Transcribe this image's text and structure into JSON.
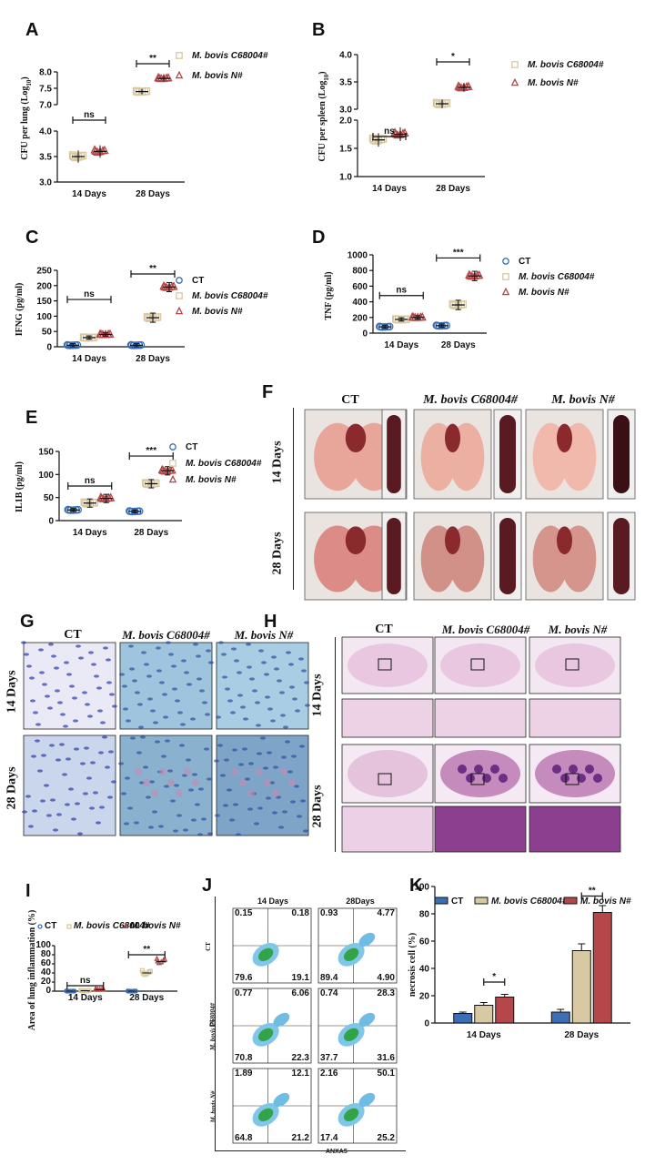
{
  "colors": {
    "ct": "#3a6fb8",
    "c68004": "#d9c9a3",
    "n": "#b5474a",
    "axis": "#111111"
  },
  "panels": {
    "A": {
      "label": "A",
      "legend": [
        "M. bovis C68004#",
        "M. bovis N#"
      ],
      "ylabel": "CFU per lung (Log",
      "ylabel_sub": "10",
      ")": ")",
      "yticks_top": [
        "7.0",
        "7.5",
        "8.0"
      ],
      "yticks_bottom": [
        "3.0",
        "3.5",
        "4.0"
      ],
      "xticks": [
        "14 Days",
        "28 Days"
      ],
      "sig": [
        "ns",
        "**"
      ]
    },
    "B": {
      "label": "B",
      "legend": [
        "M. bovis C68004#",
        "M. bovis N#"
      ],
      "ylabel": "CFU per spleen (Log",
      "ylabel_sub": "10",
      "yticks_top": [
        "3.0",
        "3.5",
        "4.0"
      ],
      "yticks_bottom": [
        "1.0",
        "1.5",
        "2.0"
      ],
      "xticks": [
        "14 Days",
        "28 Days"
      ],
      "sig": [
        "ns",
        "*"
      ]
    },
    "C": {
      "label": "C",
      "legend": [
        "CT",
        "M. bovis C68004#",
        "M. bovis N#"
      ],
      "ylabel": "IFNG (pg/ml)",
      "yticks": [
        "0",
        "50",
        "100",
        "150",
        "200",
        "250"
      ],
      "xticks": [
        "14 Days",
        "28 Days"
      ],
      "sig": [
        "ns",
        "**"
      ]
    },
    "D": {
      "label": "D",
      "legend": [
        "CT",
        "M. bovis C68004#",
        "M. bovis N#"
      ],
      "ylabel": "TNF (pg/ml)",
      "yticks": [
        "0",
        "200",
        "400",
        "600",
        "800",
        "1000"
      ],
      "xticks": [
        "14 Days",
        "28 Days"
      ],
      "sig": [
        "ns",
        "***"
      ]
    },
    "E": {
      "label": "E",
      "legend": [
        "CT",
        "M. bovis C68004#",
        "M. bovis N#"
      ],
      "ylabel": "IL1B (pg/ml)",
      "yticks": [
        "0",
        "50",
        "100",
        "150"
      ],
      "xticks": [
        "14 Days",
        "28 Days"
      ],
      "sig": [
        "ns",
        "***"
      ]
    },
    "F": {
      "label": "F",
      "cols": [
        "CT",
        "M. bovis C68004#",
        "M. bovis N#"
      ],
      "rows": [
        "14 Days",
        "28 Days"
      ]
    },
    "G": {
      "label": "G",
      "cols": [
        "CT",
        "M. bovis C68004#",
        "M. bovis N#"
      ],
      "rows": [
        "14 Days",
        "28 Days"
      ]
    },
    "H": {
      "label": "H",
      "cols": [
        "CT",
        "M. bovis C68004#",
        "M. bovis N#"
      ],
      "rows": [
        "14 Days",
        "28 Days"
      ]
    },
    "I": {
      "label": "I",
      "legend": [
        "CT",
        "M. bovis C68004#",
        "M. bovis N#"
      ],
      "ylabel": "Area of lung inflammation (%)",
      "yticks": [
        "0",
        "20",
        "40",
        "60",
        "80",
        "100"
      ],
      "xticks": [
        "14 Days",
        "28 Days"
      ],
      "sig": [
        "ns",
        "**"
      ]
    },
    "J": {
      "label": "J",
      "cols": [
        "14 Days",
        "28Days"
      ],
      "rows": [
        "CT",
        "M. bovis C68004#",
        "M. bovis N#"
      ],
      "ylabel": "PI",
      "xlabel": "ANXA5",
      "quadrants": [
        [
          "0.15",
          "0.18",
          "79.6",
          "19.1",
          "0.93",
          "4.77",
          "89.4",
          "4.90"
        ],
        [
          "0.77",
          "6.06",
          "70.8",
          "22.3",
          "0.74",
          "28.3",
          "37.7",
          "31.6"
        ],
        [
          "1.89",
          "12.1",
          "64.8",
          "21.2",
          "2.16",
          "50.1",
          "17.4",
          "25.2"
        ]
      ]
    },
    "K": {
      "label": "K",
      "legend": [
        "CT",
        "M. bovis C68004#",
        "M. bovis N#"
      ],
      "ylabel": "necrosis cell (%)",
      "yticks": [
        "0",
        "20",
        "40",
        "60",
        "80",
        "100"
      ],
      "xticks": [
        "14 Days",
        "28 Days"
      ],
      "sig": [
        "*",
        "**"
      ]
    }
  },
  "chart_data": [
    {
      "type": "scatter",
      "panel": "A",
      "categories": [
        "14 Days",
        "28 Days"
      ],
      "ylabel": "CFU per lung (Log10)",
      "broken_axis": true,
      "ylim_bottom": [
        3.0,
        4.0
      ],
      "ylim_top": [
        7.0,
        8.0
      ],
      "series": [
        {
          "name": "M. bovis C68004#",
          "mean": [
            3.5,
            7.4
          ]
        },
        {
          "name": "M. bovis N#",
          "mean": [
            3.6,
            7.8
          ]
        }
      ]
    },
    {
      "type": "scatter",
      "panel": "B",
      "categories": [
        "14 Days",
        "28 Days"
      ],
      "ylabel": "CFU per spleen (Log10)",
      "broken_axis": true,
      "ylim_bottom": [
        1.0,
        2.0
      ],
      "ylim_top": [
        3.0,
        4.0
      ],
      "series": [
        {
          "name": "M. bovis C68004#",
          "mean": [
            1.65,
            3.1
          ]
        },
        {
          "name": "M. bovis N#",
          "mean": [
            1.75,
            3.4
          ]
        }
      ]
    },
    {
      "type": "scatter",
      "panel": "C",
      "categories": [
        "14 Days",
        "28 Days"
      ],
      "ylabel": "IFNG (pg/ml)",
      "ylim": [
        0,
        250
      ],
      "series": [
        {
          "name": "CT",
          "mean": [
            5,
            5
          ]
        },
        {
          "name": "M. bovis C68004#",
          "mean": [
            30,
            95
          ]
        },
        {
          "name": "M. bovis N#",
          "mean": [
            40,
            195
          ]
        }
      ]
    },
    {
      "type": "scatter",
      "panel": "D",
      "categories": [
        "14 Days",
        "28 Days"
      ],
      "ylabel": "TNF (pg/ml)",
      "ylim": [
        0,
        1000
      ],
      "series": [
        {
          "name": "CT",
          "mean": [
            80,
            95
          ]
        },
        {
          "name": "M. bovis C68004#",
          "mean": [
            175,
            360
          ]
        },
        {
          "name": "M. bovis N#",
          "mean": [
            200,
            730
          ]
        }
      ]
    },
    {
      "type": "scatter",
      "panel": "E",
      "categories": [
        "14 Days",
        "28 Days"
      ],
      "ylabel": "IL1B (pg/ml)",
      "ylim": [
        0,
        150
      ],
      "series": [
        {
          "name": "CT",
          "mean": [
            23,
            20
          ]
        },
        {
          "name": "M. bovis C68004#",
          "mean": [
            38,
            80
          ]
        },
        {
          "name": "M. bovis N#",
          "mean": [
            48,
            108
          ]
        }
      ]
    },
    {
      "type": "scatter",
      "panel": "I",
      "categories": [
        "14 Days",
        "28 Days"
      ],
      "ylabel": "Area of lung inflammation (%)",
      "ylim": [
        0,
        100
      ],
      "series": [
        {
          "name": "CT",
          "mean": [
            0,
            0
          ]
        },
        {
          "name": "M. bovis C68004#",
          "mean": [
            1,
            40
          ]
        },
        {
          "name": "M. bovis N#",
          "mean": [
            3,
            65
          ]
        }
      ]
    },
    {
      "type": "bar",
      "panel": "K",
      "categories": [
        "14 Days",
        "28 Days"
      ],
      "ylabel": "necrosis cell (%)",
      "ylim": [
        0,
        100
      ],
      "series": [
        {
          "name": "CT",
          "values": [
            7,
            8
          ]
        },
        {
          "name": "M. bovis C68004#",
          "values": [
            13,
            53
          ]
        },
        {
          "name": "M. bovis N#",
          "values": [
            19,
            81
          ]
        }
      ]
    }
  ]
}
